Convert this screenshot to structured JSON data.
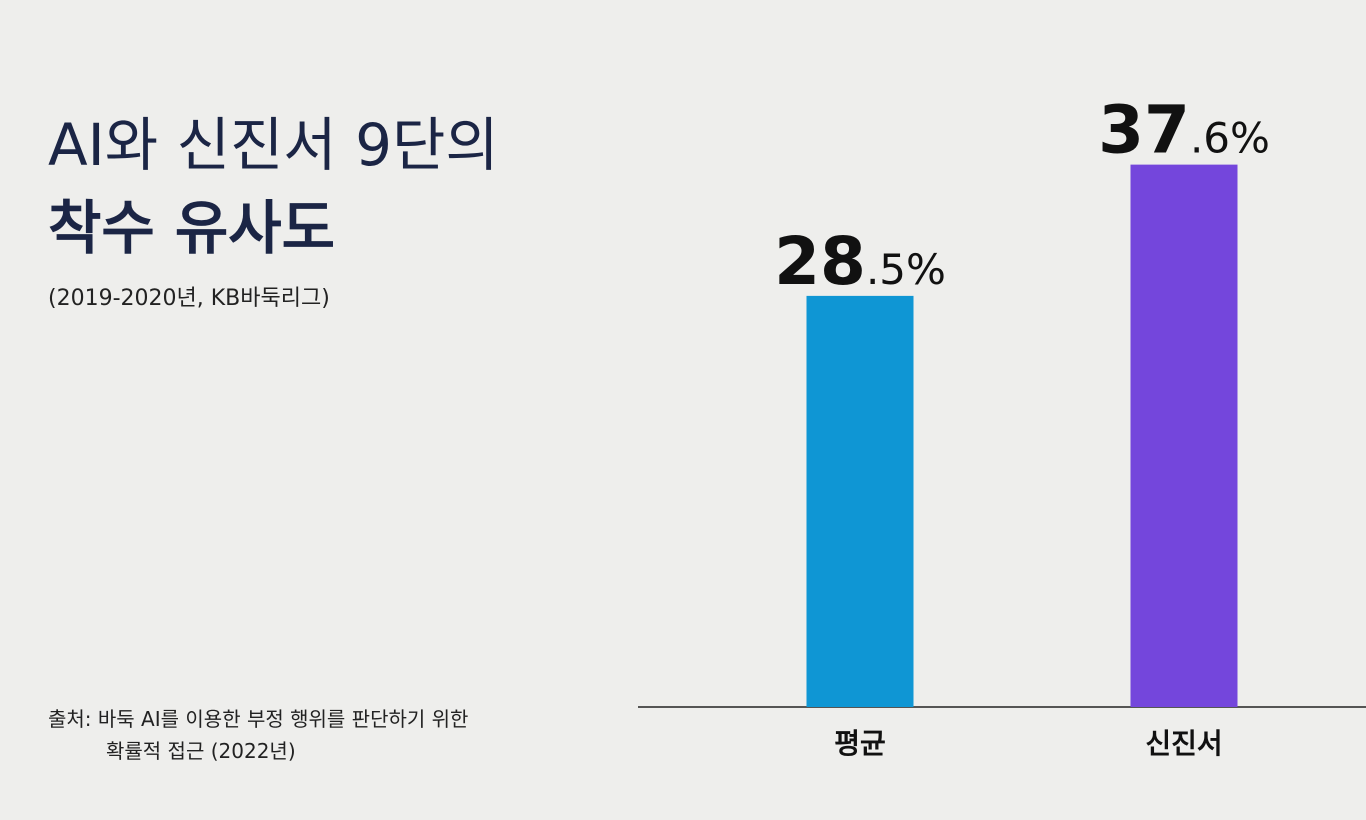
{
  "chart_data": {
    "type": "bar",
    "title": [
      "AI와 신진서 9단의",
      "착수 유사도"
    ],
    "subtitle": "(2019-2020년, KB바둑리그)",
    "source": [
      "출처: 바둑 AI를 이용한 부정 행위를 판단하기 위한",
      "확률적 접근 (2022년)"
    ],
    "categories": [
      "평균",
      "신진서"
    ],
    "values": [
      28.5,
      37.6
    ],
    "value_labels": [
      "28.5%",
      "37.6%"
    ],
    "colors": [
      "#0f96d4",
      "#7446dc"
    ],
    "ylim": [
      0,
      40
    ]
  }
}
